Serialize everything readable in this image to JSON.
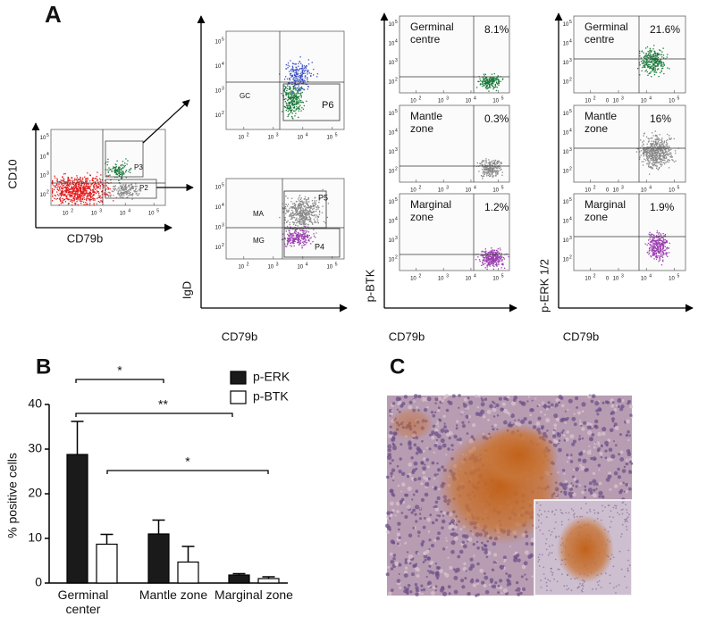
{
  "panel_a": {
    "label": "A",
    "log_tick_base": "10",
    "log_tick_exponents": [
      "2",
      "3",
      "4",
      "5"
    ],
    "zero_tick": "0",
    "gating": {
      "y_label": "CD10",
      "x_label": "CD79b",
      "gates": [
        "P3",
        "P2"
      ]
    },
    "sorting": {
      "y_label": "IgD",
      "x_label": "CD79b",
      "top_gates": [
        "GC",
        "P6"
      ],
      "bottom_gates": [
        "MA",
        "MG",
        "P5",
        "P4"
      ]
    },
    "btk": {
      "y_label": "p-BTK",
      "x_label": "CD79b",
      "plots": [
        {
          "zone": "Germinal centre",
          "percent": "8.1%"
        },
        {
          "zone": "Mantle zone",
          "percent": "0.3%"
        },
        {
          "zone": "Marginal zone",
          "percent": "1.2%"
        }
      ]
    },
    "erk": {
      "y_label": "p-ERK 1/2",
      "x_label": "CD79b",
      "plots": [
        {
          "zone": "Germinal centre",
          "percent": "21.6%"
        },
        {
          "zone": "Mantle zone",
          "percent": "16%"
        },
        {
          "zone": "Marginal zone",
          "percent": "1.9%"
        }
      ]
    }
  },
  "chart_data": {
    "type": "bar",
    "panel_label": "B",
    "y_label": "% positive cells",
    "categories": [
      "Germinal center",
      "Mantle zone",
      "Marginal zone"
    ],
    "series": [
      {
        "name": "p-ERK",
        "color": "#1a1a1a",
        "values": [
          28.8,
          11,
          1.8
        ],
        "errors": [
          7.4,
          3.1,
          0.3
        ]
      },
      {
        "name": "p-BTK",
        "color": "#ffffff",
        "values": [
          8.7,
          4.7,
          1.0
        ],
        "errors": [
          2.2,
          3.5,
          0.4
        ]
      }
    ],
    "ylim": [
      0,
      40
    ],
    "yticks": [
      0,
      10,
      20,
      30,
      40
    ],
    "annotations": [
      "*",
      "**",
      "*"
    ]
  },
  "panel_c": {
    "label": "C"
  }
}
